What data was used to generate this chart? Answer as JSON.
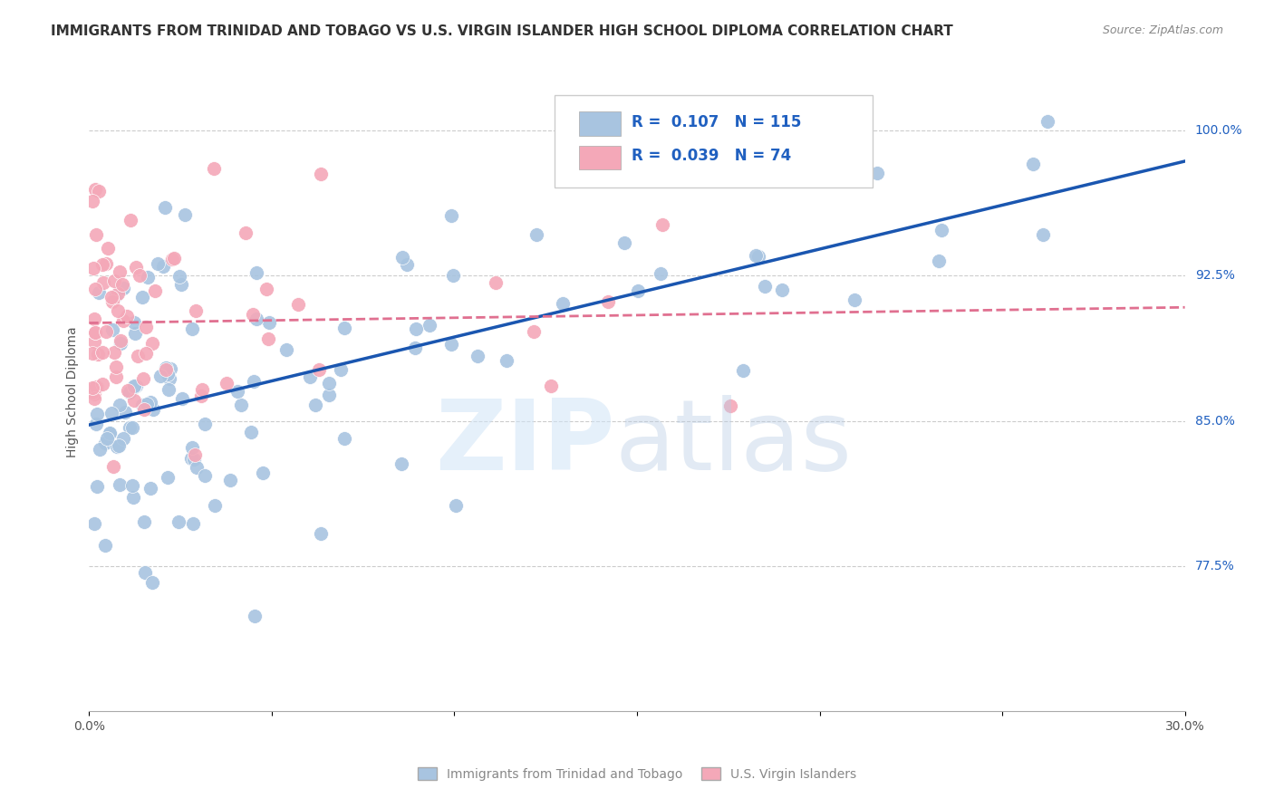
{
  "title": "IMMIGRANTS FROM TRINIDAD AND TOBAGO VS U.S. VIRGIN ISLANDER HIGH SCHOOL DIPLOMA CORRELATION CHART",
  "source": "Source: ZipAtlas.com",
  "ylabel": "High School Diploma",
  "yticks": [
    "100.0%",
    "92.5%",
    "85.0%",
    "77.5%"
  ],
  "ytick_vals": [
    1.0,
    0.925,
    0.85,
    0.775
  ],
  "xlim": [
    0.0,
    0.3
  ],
  "ylim": [
    0.7,
    1.03
  ],
  "blue_R": 0.107,
  "blue_N": 115,
  "pink_R": 0.039,
  "pink_N": 74,
  "blue_color": "#a8c4e0",
  "pink_color": "#f4a8b8",
  "blue_line_color": "#1a56b0",
  "pink_line_color": "#e07090",
  "legend_text_color": "#2060c0",
  "background_color": "#ffffff",
  "grid_color": "#cccccc",
  "title_fontsize": 11,
  "axis_label_fontsize": 10,
  "tick_fontsize": 10
}
